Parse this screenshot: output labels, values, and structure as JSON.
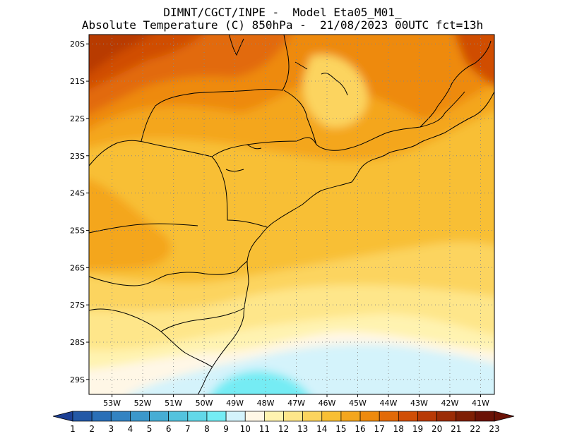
{
  "header": {
    "line1": "DIMNT/CGCT/INPE -  Model Eta05_M01_",
    "line2": "Absolute Temperature (C) 850hPa -  21/08/2023 00UTC fct=13h"
  },
  "map": {
    "lat_ticks": [
      "20S",
      "21S",
      "22S",
      "23S",
      "24S",
      "25S",
      "26S",
      "27S",
      "28S",
      "29S"
    ],
    "lat_values": [
      -20,
      -21,
      -22,
      -23,
      -24,
      -25,
      -26,
      -27,
      -28,
      -29
    ],
    "lon_ticks": [
      "53W",
      "52W",
      "51W",
      "50W",
      "49W",
      "48W",
      "47W",
      "46W",
      "45W",
      "44W",
      "43W",
      "42W",
      "41W"
    ],
    "lon_values": [
      -53,
      -52,
      -51,
      -50,
      -49,
      -48,
      -47,
      -46,
      -45,
      -44,
      -43,
      -42,
      -41
    ],
    "lon_range": [
      -53.75,
      -40.55
    ],
    "lat_range": [
      -29.4,
      -19.75
    ],
    "grid": "dotted"
  },
  "colorbar": {
    "labels": [
      "1",
      "2",
      "3",
      "4",
      "5",
      "6",
      "7",
      "8",
      "9",
      "10",
      "11",
      "12",
      "13",
      "14",
      "15",
      "16",
      "17",
      "18",
      "19",
      "20",
      "21",
      "22",
      "23"
    ],
    "colors": [
      "#1c3f94",
      "#2358a6",
      "#2a6fb7",
      "#3383c2",
      "#3c98cb",
      "#46add4",
      "#53c3de",
      "#62d8e8",
      "#74ecf4",
      "#d4f3fb",
      "#fff7e6",
      "#fff3b0",
      "#fee68a",
      "#fcd45e",
      "#f8bf34",
      "#f4a61e",
      "#ee8a0e",
      "#e26a08",
      "#d04e06",
      "#b83a05",
      "#9b2c05",
      "#7e1f04",
      "#6a1206"
    ]
  }
}
